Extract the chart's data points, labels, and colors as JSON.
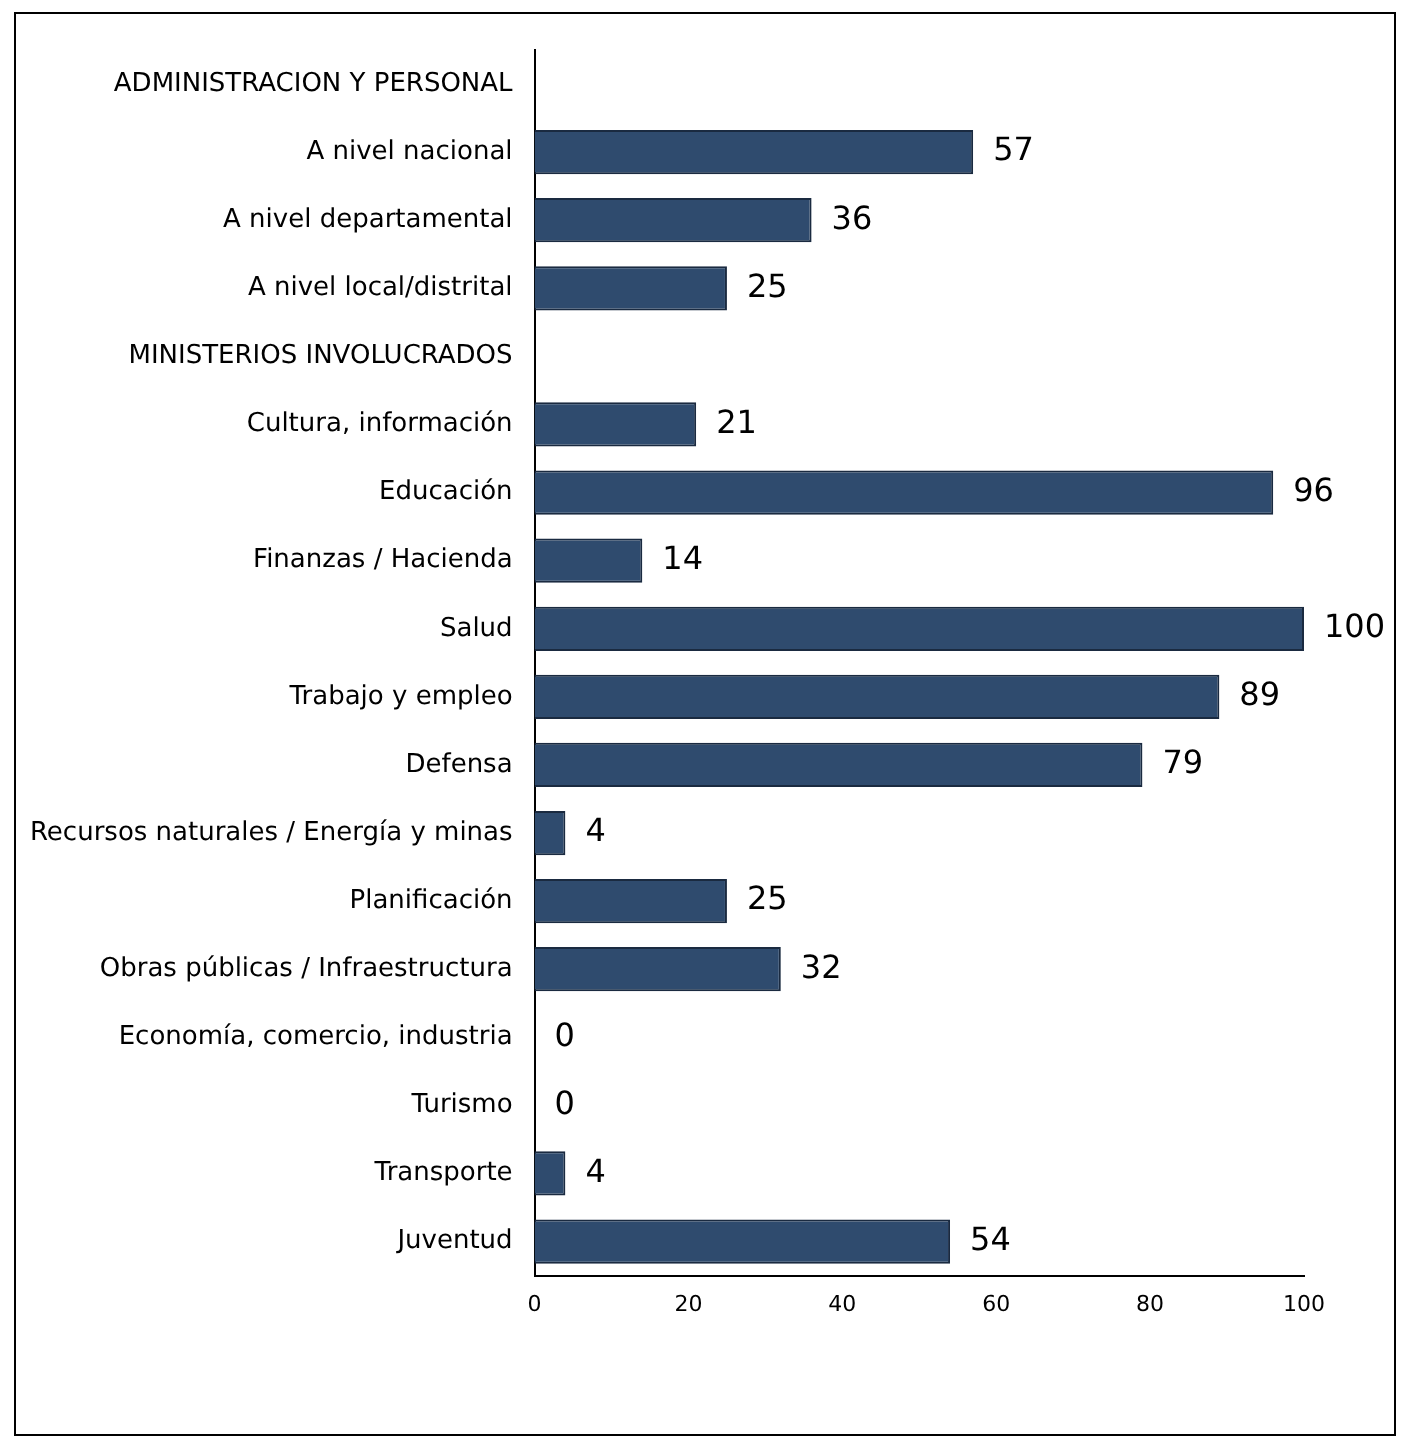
{
  "chart_data": {
    "type": "bar",
    "orientation": "horizontal",
    "categories": [
      "ADMINISTRACION Y PERSONAL",
      "A nivel nacional",
      "A nivel departamental",
      "A nivel local/distrital",
      "MINISTERIOS INVOLUCRADOS",
      "Cultura, información",
      "Educación",
      "Finanzas / Hacienda",
      "Salud",
      "Trabajo y empleo",
      "Defensa",
      "Recursos naturales / Energía y minas",
      "Planificación",
      "Obras públicas / Infraestructura",
      "Economía, comercio, industria",
      "Turismo",
      "Transporte",
      "Juventud"
    ],
    "values": [
      null,
      57,
      36,
      25,
      null,
      21,
      96,
      14,
      100,
      89,
      79,
      4,
      25,
      32,
      0,
      0,
      4,
      54
    ],
    "color": "#2f4b6e",
    "xlim": [
      0,
      100
    ],
    "xticks": [
      0,
      20,
      40,
      60,
      80,
      100
    ],
    "grid": false,
    "legend": false,
    "data_labels": true
  }
}
